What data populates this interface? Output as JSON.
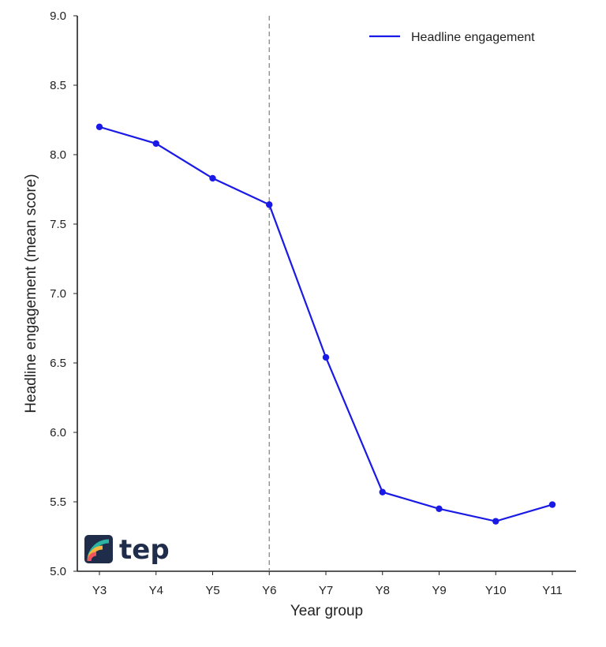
{
  "chart_data": {
    "type": "line",
    "title": "",
    "xlabel": "Year group",
    "ylabel": "Headline engagement (mean score)",
    "categories": [
      "Y3",
      "Y4",
      "Y5",
      "Y6",
      "Y7",
      "Y8",
      "Y9",
      "Y10",
      "Y11"
    ],
    "series": [
      {
        "name": "Headline engagement",
        "color": "#1a1ae6",
        "values": [
          8.2,
          8.08,
          7.83,
          7.64,
          6.54,
          5.57,
          5.45,
          5.36,
          5.48
        ]
      }
    ],
    "ylim": [
      5.0,
      9.0
    ],
    "yticks": [
      "5.0",
      "5.5",
      "6.0",
      "6.5",
      "7.0",
      "7.5",
      "8.0",
      "8.5",
      "9.0"
    ],
    "reference_line": {
      "category": "Y6",
      "style": "dashed",
      "color": "#888888"
    },
    "grid": false,
    "legend": "top-right"
  },
  "logo": {
    "text": "tep",
    "colors": [
      "#1f2d4a",
      "#2bb3a3",
      "#f4b63f",
      "#f0565b"
    ]
  }
}
